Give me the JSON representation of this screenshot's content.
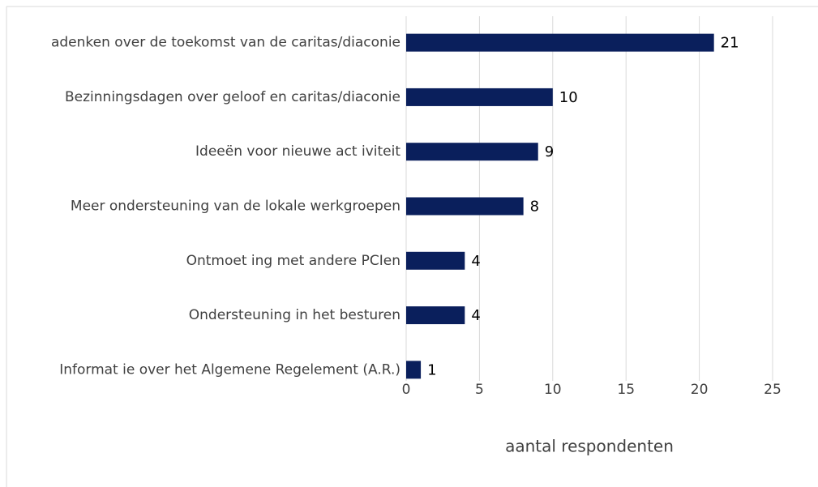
{
  "chart_data": {
    "type": "bar",
    "orientation": "horizontal",
    "categories": [
      "adenken over de toekomst van de caritas/diaconie",
      "Bezinningsdagen over geloof en caritas/diaconie",
      "Ideeën voor nieuwe act iviteit",
      "Meer ondersteuning van de lokale werkgroepen",
      "Ontmoet ing met andere PCIen",
      "Ondersteuning in het besturen",
      "Informat ie over het Algemene Regelement (A.R.)"
    ],
    "values": [
      21,
      10,
      9,
      8,
      4,
      4,
      1
    ],
    "color": "#0a1f5c",
    "x_label": "aantal respondenten",
    "xlim": [
      0,
      25
    ],
    "xticks": [
      0,
      5,
      10,
      15,
      20,
      25
    ],
    "grid": true,
    "data_labels": true
  }
}
